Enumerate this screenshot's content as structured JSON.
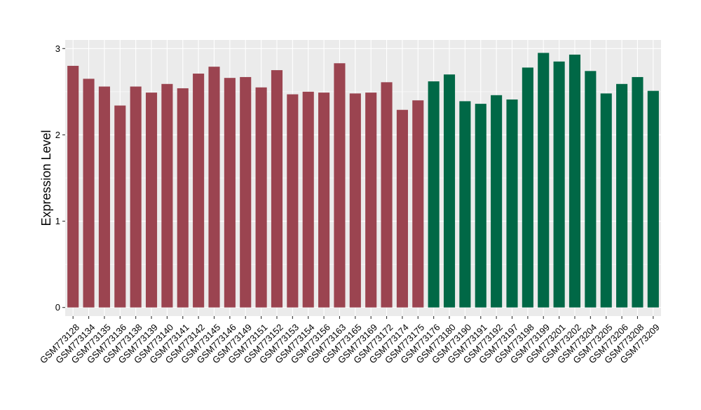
{
  "chart_data": {
    "type": "bar",
    "ylabel": "Expression Level",
    "xlabel": "",
    "title": "",
    "ylim": [
      -0.1,
      3.1
    ],
    "yticks": [
      0,
      1,
      2,
      3
    ],
    "grid": true,
    "legend": "none",
    "background": "#ebebeb",
    "gridline_color": "#ffffff",
    "group_colors": [
      "#9b4450",
      "#006846"
    ],
    "categories": [
      "GSM773128",
      "GSM773134",
      "GSM773135",
      "GSM773136",
      "GSM773138",
      "GSM773139",
      "GSM773140",
      "GSM773141",
      "GSM773142",
      "GSM773145",
      "GSM773146",
      "GSM773149",
      "GSM773151",
      "GSM773152",
      "GSM773153",
      "GSM773154",
      "GSM773156",
      "GSM773163",
      "GSM773165",
      "GSM773169",
      "GSM773172",
      "GSM773174",
      "GSM773175",
      "GSM773176",
      "GSM773180",
      "GSM773190",
      "GSM773191",
      "GSM773192",
      "GSM773197",
      "GSM773198",
      "GSM773199",
      "GSM773201",
      "GSM773202",
      "GSM773204",
      "GSM773205",
      "GSM773206",
      "GSM773208",
      "GSM773209"
    ],
    "values": [
      2.8,
      2.65,
      2.56,
      2.34,
      2.56,
      2.49,
      2.59,
      2.54,
      2.71,
      2.79,
      2.66,
      2.67,
      2.55,
      2.75,
      2.47,
      2.5,
      2.49,
      2.83,
      2.48,
      2.49,
      2.61,
      2.29,
      2.4,
      2.62,
      2.7,
      2.39,
      2.36,
      2.46,
      2.41,
      2.78,
      2.95,
      2.85,
      2.93,
      2.74,
      2.48,
      2.59,
      2.67,
      2.51
    ],
    "groups": [
      0,
      0,
      0,
      0,
      0,
      0,
      0,
      0,
      0,
      0,
      0,
      0,
      0,
      0,
      0,
      0,
      0,
      0,
      0,
      0,
      0,
      0,
      0,
      1,
      1,
      1,
      1,
      1,
      1,
      1,
      1,
      1,
      1,
      1,
      1,
      1,
      1,
      1
    ]
  }
}
